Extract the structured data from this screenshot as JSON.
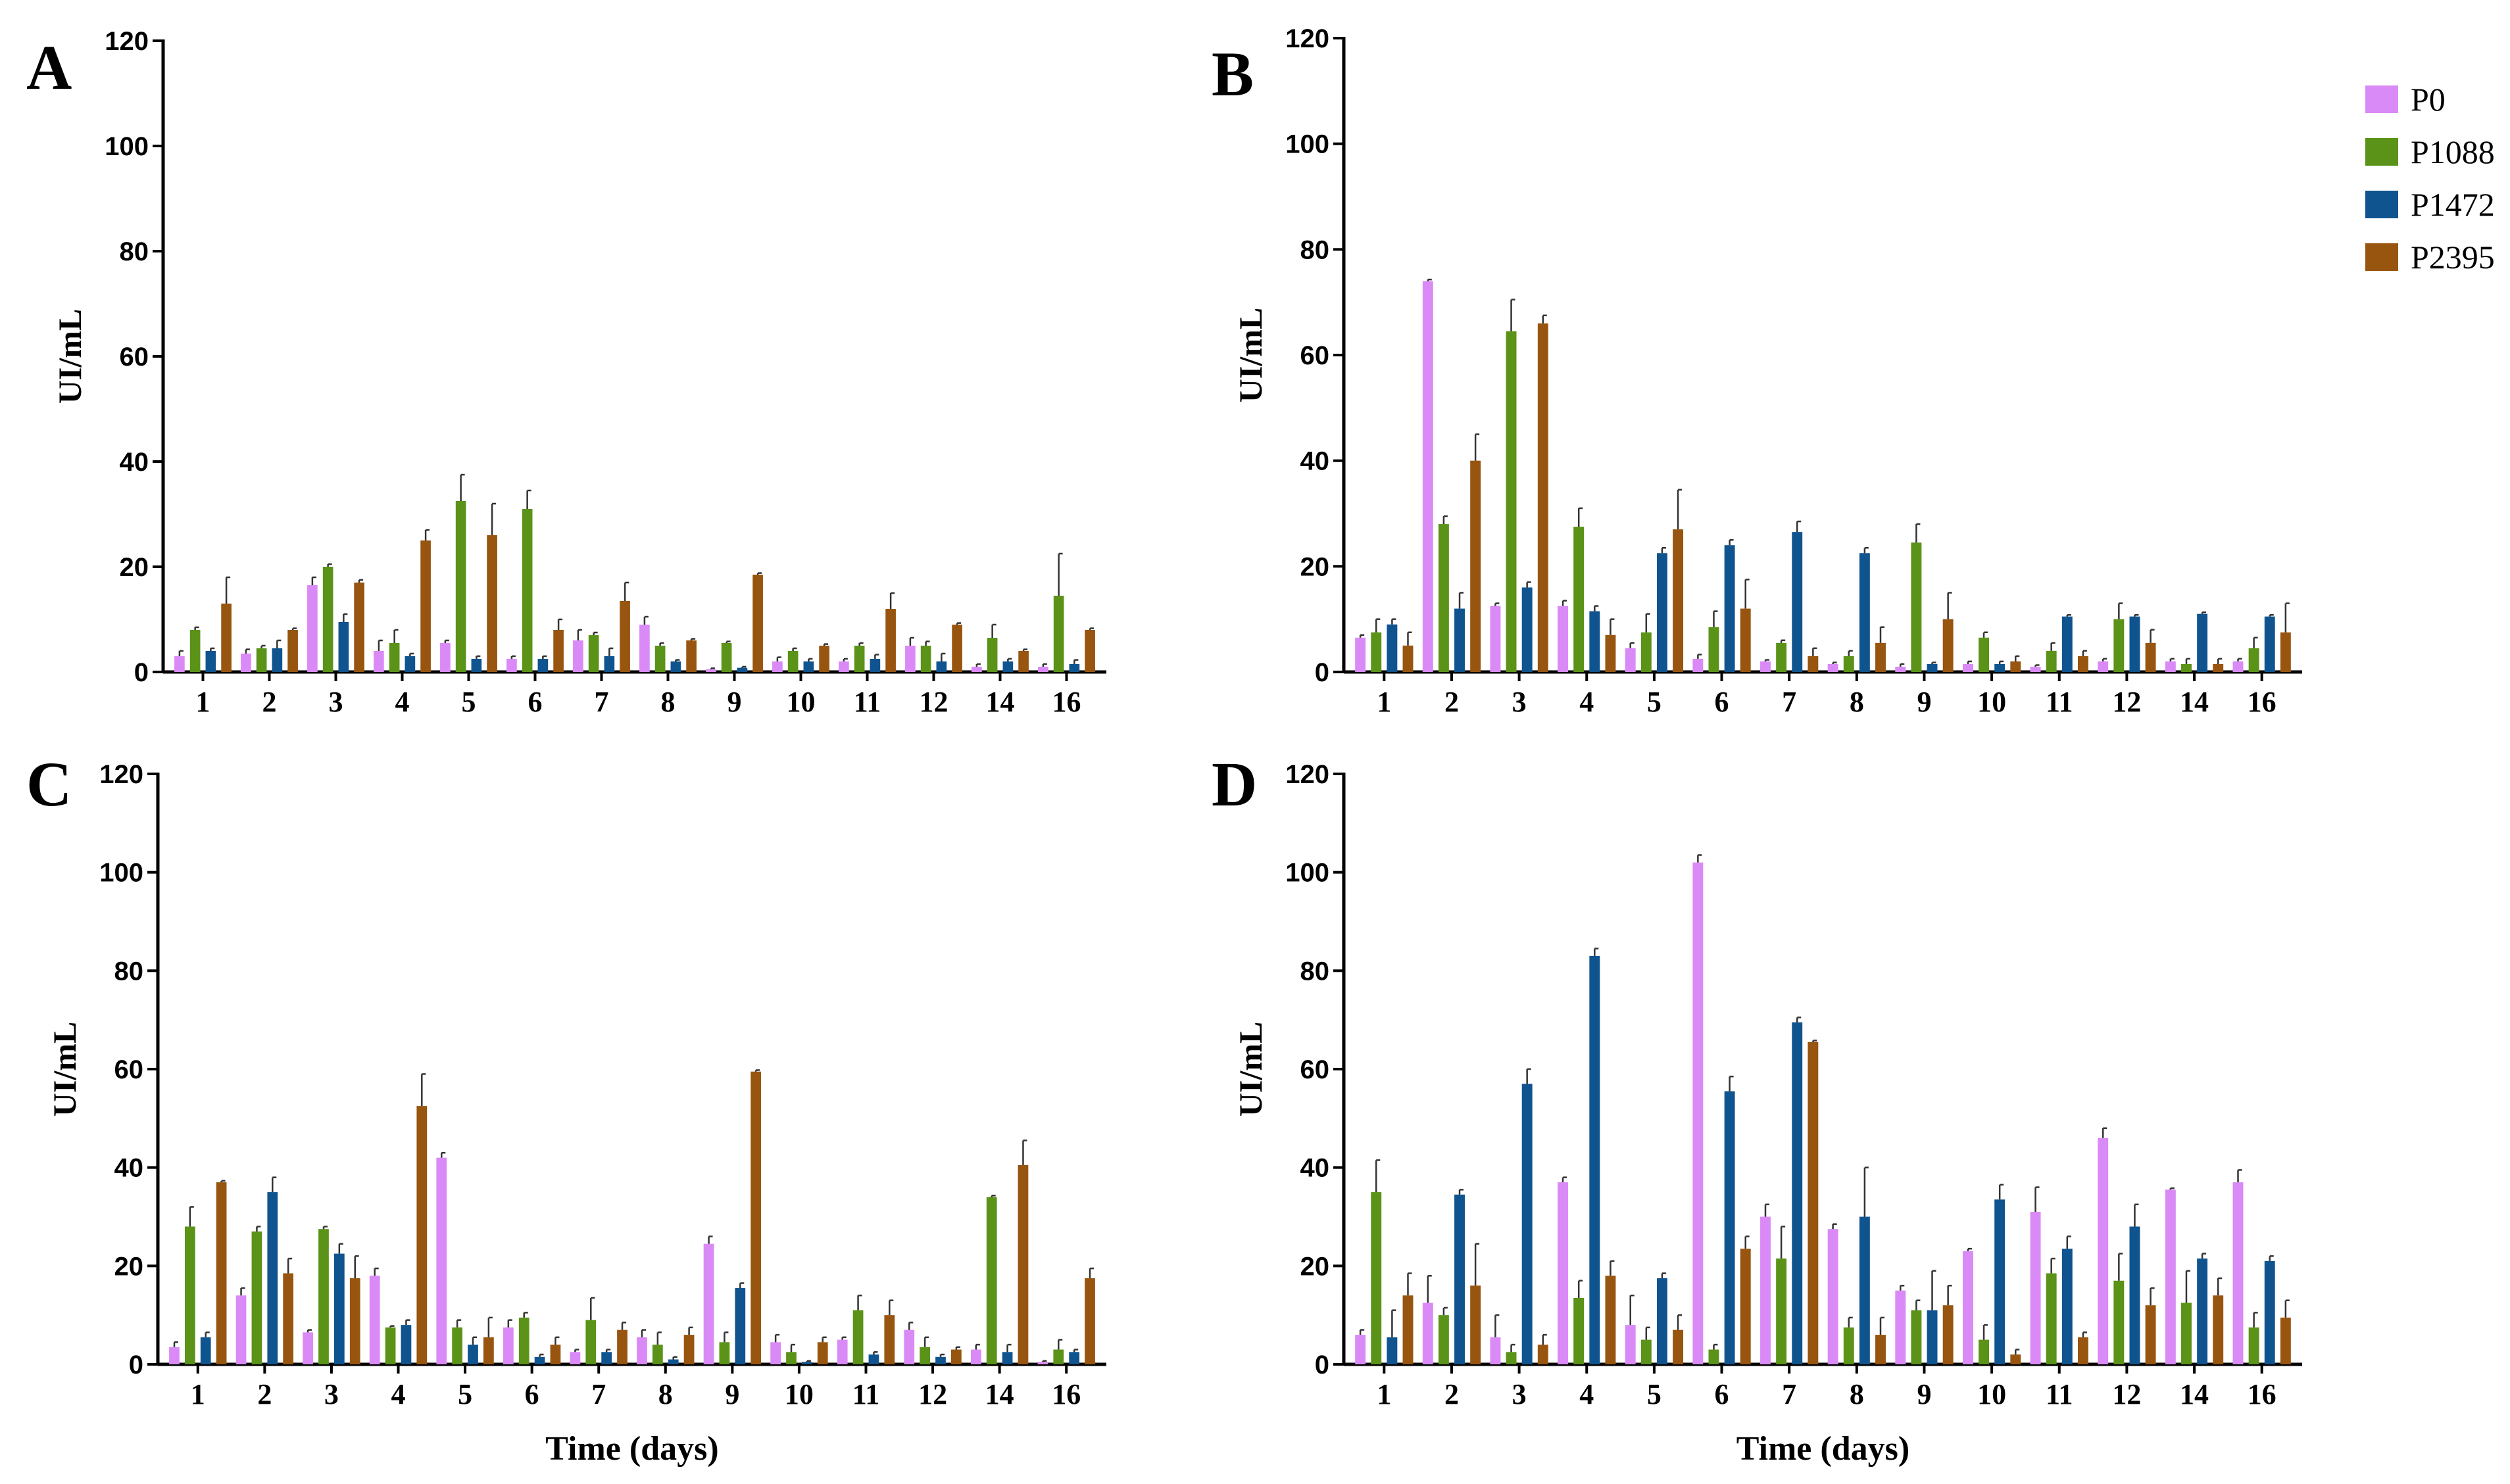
{
  "legend": [
    {
      "name": "P0",
      "color": "#DA8AF6"
    },
    {
      "name": "P1088",
      "color": "#5A9317"
    },
    {
      "name": "P1472",
      "color": "#10548F"
    },
    {
      "name": "P2395",
      "color": "#98550F"
    }
  ],
  "chart_data": [
    {
      "panel": "A",
      "type": "bar",
      "categories": [
        "1",
        "2",
        "3",
        "4",
        "5",
        "6",
        "7",
        "8",
        "9",
        "10",
        "11",
        "12",
        "14",
        "16"
      ],
      "ylabel": "UI/mL",
      "xlabel": "",
      "ylim": [
        0,
        120
      ],
      "yticks": [
        0,
        20,
        40,
        60,
        80,
        100,
        120
      ],
      "series": [
        {
          "name": "P0",
          "values": [
            3,
            3.5,
            16.5,
            4,
            5.5,
            2.5,
            6,
            9,
            0.5,
            2,
            2,
            5,
            1,
            1
          ],
          "errors": [
            1,
            0.8,
            1.5,
            2,
            0.5,
            0.5,
            2,
            1.5,
            0.2,
            0.8,
            0.5,
            1.5,
            0.5,
            0.5
          ]
        },
        {
          "name": "P1088",
          "values": [
            8,
            4.5,
            20,
            5.5,
            32.5,
            31,
            7,
            5,
            5.5,
            4,
            5,
            5,
            6.5,
            14.5
          ],
          "errors": [
            0.5,
            0.5,
            0.5,
            2.5,
            5,
            3.5,
            0.5,
            0.5,
            0.3,
            0.5,
            0.5,
            0.8,
            2.5,
            8
          ]
        },
        {
          "name": "P1472",
          "values": [
            4,
            4.5,
            9.5,
            3,
            2.5,
            2.5,
            3,
            2,
            0.8,
            2,
            2.5,
            2,
            2,
            1.5
          ],
          "errors": [
            0.5,
            1.5,
            1.5,
            0.5,
            0.5,
            0.5,
            1.5,
            0.3,
            0.2,
            0.5,
            0.8,
            1.5,
            0.5,
            0.8
          ]
        },
        {
          "name": "P2395",
          "values": [
            13,
            8,
            17,
            25,
            26,
            8,
            13.5,
            6,
            18.5,
            5,
            12,
            9,
            4,
            8
          ],
          "errors": [
            5,
            0.3,
            0.5,
            2,
            6,
            2,
            3.5,
            0.3,
            0.3,
            0.3,
            3,
            0.3,
            0.3,
            0.3
          ]
        }
      ]
    },
    {
      "panel": "B",
      "type": "bar",
      "categories": [
        "1",
        "2",
        "3",
        "4",
        "5",
        "6",
        "7",
        "8",
        "9",
        "10",
        "11",
        "12",
        "14",
        "16"
      ],
      "ylabel": "UI/mL",
      "xlabel": "",
      "ylim": [
        0,
        120
      ],
      "yticks": [
        0,
        20,
        40,
        60,
        80,
        100,
        120
      ],
      "series": [
        {
          "name": "P0",
          "values": [
            6.5,
            74,
            12.5,
            12.5,
            4.5,
            2.5,
            2,
            1.5,
            1,
            1.5,
            1,
            2,
            2,
            2
          ],
          "errors": [
            0.5,
            0.3,
            0.5,
            1,
            1,
            0.8,
            0.3,
            0.3,
            0.5,
            0.5,
            0.3,
            0.5,
            0.5,
            0.5
          ]
        },
        {
          "name": "P1088",
          "values": [
            7.5,
            28,
            64.5,
            27.5,
            7.5,
            8.5,
            5.5,
            3,
            24.5,
            6.5,
            4,
            10,
            1.5,
            4.5
          ],
          "errors": [
            2.5,
            1.5,
            6,
            3.5,
            3.5,
            3,
            0.5,
            1,
            3.5,
            1,
            1.5,
            3,
            1,
            2
          ]
        },
        {
          "name": "P1472",
          "values": [
            9,
            12,
            16,
            11.5,
            22.5,
            24,
            26.5,
            22.5,
            1.5,
            1.5,
            10.5,
            10.5,
            11,
            10.5
          ],
          "errors": [
            1,
            3,
            1,
            1,
            1,
            1,
            2,
            1,
            0.3,
            0.5,
            0.3,
            0.3,
            0.3,
            0.3
          ]
        },
        {
          "name": "P2395",
          "values": [
            5,
            40,
            66,
            7,
            27,
            12,
            3,
            5.5,
            10,
            2,
            3,
            5.5,
            1.5,
            7.5
          ],
          "errors": [
            2.5,
            5,
            1.5,
            3,
            7.5,
            5.5,
            1.5,
            3,
            5,
            1,
            1,
            2.5,
            1,
            5.5
          ]
        }
      ]
    },
    {
      "panel": "C",
      "type": "bar",
      "categories": [
        "1",
        "2",
        "3",
        "4",
        "5",
        "6",
        "7",
        "8",
        "9",
        "10",
        "11",
        "12",
        "14",
        "16"
      ],
      "ylabel": "UI/mL",
      "xlabel": "Time (days)",
      "ylim": [
        0,
        120
      ],
      "yticks": [
        0,
        20,
        40,
        60,
        80,
        100,
        120
      ],
      "series": [
        {
          "name": "P0",
          "values": [
            3.5,
            14,
            6.5,
            18,
            42,
            7.5,
            2.5,
            5.5,
            24.5,
            4.5,
            5,
            7,
            3,
            0.5
          ],
          "errors": [
            1,
            1.5,
            0.5,
            1.5,
            1,
            1.5,
            0.5,
            1.5,
            1.5,
            1.5,
            0.5,
            1.5,
            1,
            0.2
          ]
        },
        {
          "name": "P1088",
          "values": [
            28,
            27,
            27.5,
            7.5,
            7.5,
            9.5,
            9,
            4,
            4.5,
            2.5,
            11,
            3.5,
            34,
            3
          ],
          "errors": [
            4,
            1,
            0.5,
            0.3,
            1.5,
            1,
            4.5,
            2.5,
            2,
            1.5,
            3,
            2,
            0.3,
            2
          ]
        },
        {
          "name": "P1472",
          "values": [
            5.5,
            35,
            22.5,
            8,
            4,
            1.5,
            2.5,
            1,
            15.5,
            0.5,
            2,
            1.5,
            2.5,
            2.5
          ],
          "errors": [
            1,
            3,
            2,
            1,
            1.5,
            0.5,
            0.5,
            0.5,
            1,
            0.2,
            0.5,
            0.5,
            1.5,
            0.5
          ]
        },
        {
          "name": "P2395",
          "values": [
            37,
            18.5,
            17.5,
            52.5,
            5.5,
            4,
            7,
            6,
            59.5,
            4.5,
            10,
            3,
            40.5,
            17.5
          ],
          "errors": [
            0.3,
            3,
            4.5,
            6.5,
            4,
            1.5,
            1.5,
            1.5,
            0.3,
            1,
            3,
            0.5,
            5,
            2
          ]
        }
      ]
    },
    {
      "panel": "D",
      "type": "bar",
      "categories": [
        "1",
        "2",
        "3",
        "4",
        "5",
        "6",
        "7",
        "8",
        "9",
        "10",
        "11",
        "12",
        "14",
        "16"
      ],
      "ylabel": "UI/mL",
      "xlabel": "Time (days)",
      "ylim": [
        0,
        120
      ],
      "yticks": [
        0,
        20,
        40,
        60,
        80,
        100,
        120
      ],
      "series": [
        {
          "name": "P0",
          "values": [
            6,
            12.5,
            5.5,
            37,
            8,
            102,
            30,
            27.5,
            15,
            23,
            31,
            46,
            35.5,
            37
          ],
          "errors": [
            1,
            5.5,
            4.5,
            1,
            6,
            1.5,
            2.5,
            1,
            1,
            0.5,
            5,
            2,
            0.3,
            2.5
          ]
        },
        {
          "name": "P1088",
          "values": [
            35,
            10,
            2.5,
            13.5,
            5,
            3,
            21.5,
            7.5,
            11,
            5,
            18.5,
            17,
            12.5,
            7.5
          ],
          "errors": [
            6.5,
            1.5,
            1.5,
            3.5,
            2.5,
            1,
            6.5,
            2,
            2,
            3,
            3,
            5.5,
            6.5,
            3
          ]
        },
        {
          "name": "P1472",
          "values": [
            5.5,
            34.5,
            57,
            83,
            17.5,
            55.5,
            69.5,
            30,
            11,
            33.5,
            23.5,
            28,
            21.5,
            21
          ],
          "errors": [
            5.5,
            1,
            3,
            1.5,
            1,
            3,
            1,
            10,
            8,
            3,
            2.5,
            4.5,
            1,
            1
          ]
        },
        {
          "name": "P2395",
          "values": [
            14,
            16,
            4,
            18,
            7,
            23.5,
            65.5,
            6,
            12,
            2,
            5.5,
            12,
            14,
            9.5
          ],
          "errors": [
            4.5,
            8.5,
            2,
            3,
            3,
            2.5,
            0.3,
            3.5,
            4,
            1,
            1,
            3.5,
            3.5,
            3.5
          ]
        }
      ]
    }
  ]
}
